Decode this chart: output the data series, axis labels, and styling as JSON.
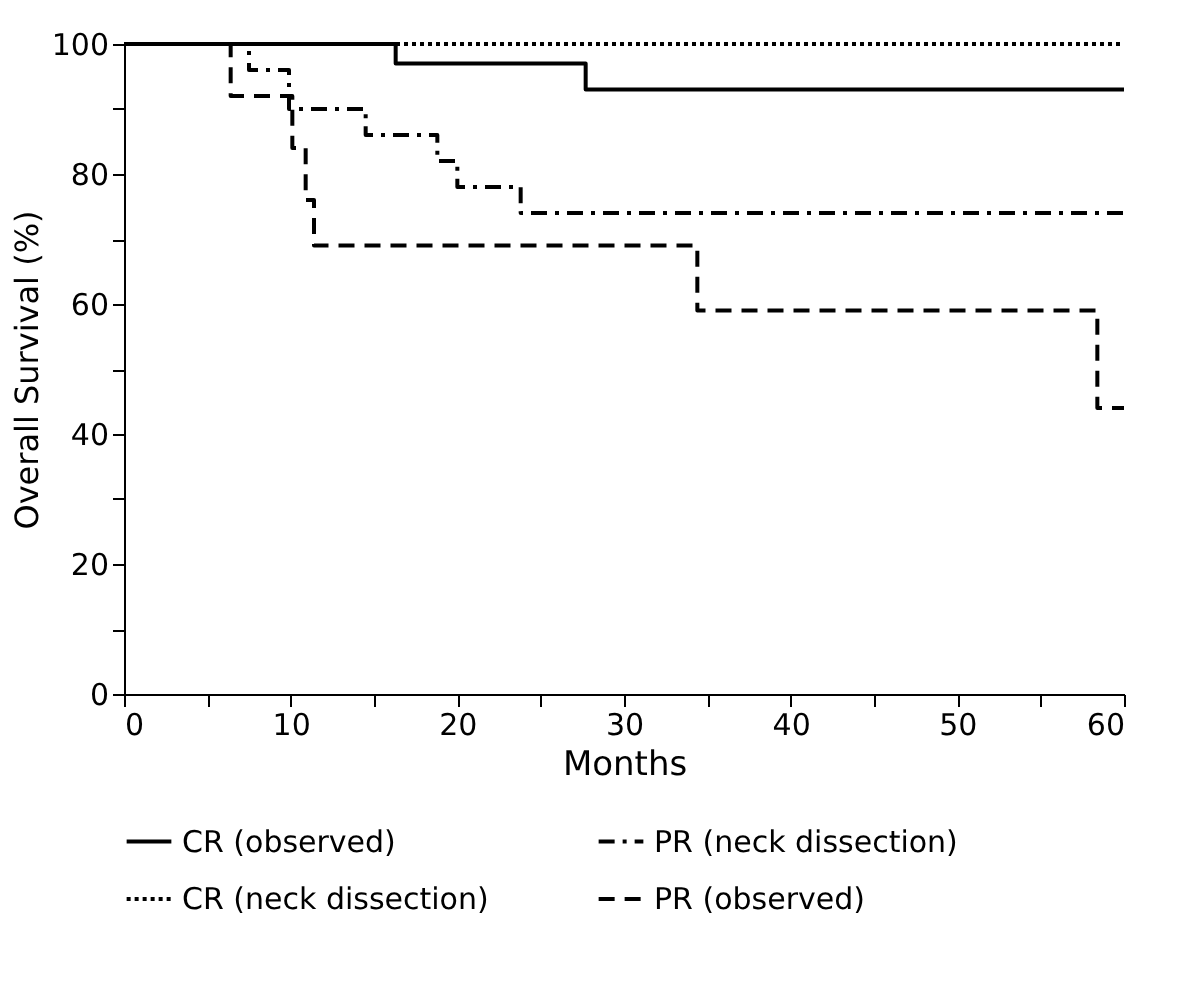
{
  "chart_data": {
    "type": "step",
    "xlabel": "Months",
    "ylabel": "Overall Survival (%)",
    "xlim": [
      0,
      60
    ],
    "xticks": [
      0,
      {
        "value": 5,
        "label": null
      },
      10,
      {
        "value": 15,
        "label": null
      },
      20,
      {
        "value": 25,
        "label": null
      },
      30,
      {
        "value": 35,
        "label": null
      },
      40,
      {
        "value": 45,
        "label": null
      },
      50,
      {
        "value": 55,
        "label": null
      },
      60
    ],
    "ylim": [
      0,
      100
    ],
    "yticks": [
      0,
      {
        "value": 10,
        "label": null
      },
      20,
      {
        "value": 30,
        "label": null
      },
      40,
      {
        "value": 50,
        "label": null
      },
      60,
      {
        "value": 70,
        "label": null
      },
      80,
      {
        "value": 90,
        "label": null
      },
      100
    ],
    "grid": false,
    "legend": "bottom",
    "marker": "none",
    "series": [
      {
        "name": "CR (observed)",
        "color": "#000000",
        "line_style": "solid",
        "x": [
          0,
          16.3,
          27.7,
          60
        ],
        "values": [
          100,
          97,
          93,
          93
        ]
      },
      {
        "name": "PR (neck dissection)",
        "color": "#000000",
        "line_style": "dashdot",
        "x": [
          0,
          7.5,
          9.9,
          14.5,
          18.8,
          20,
          23.8,
          60
        ],
        "values": [
          100,
          96,
          90,
          86,
          82,
          78,
          74,
          74
        ]
      },
      {
        "name": "CR (neck dissection)",
        "color": "#000000",
        "line_style": "dotted",
        "x": [
          0,
          60
        ],
        "values": [
          100,
          100
        ]
      },
      {
        "name": "PR (observed)",
        "color": "#000000",
        "line_style": "dashed",
        "x": [
          0,
          6.4,
          10.1,
          10.9,
          11.4,
          34.4,
          58.4,
          60
        ],
        "values": [
          100,
          92,
          84,
          76,
          69,
          59,
          44,
          44
        ]
      }
    ]
  }
}
